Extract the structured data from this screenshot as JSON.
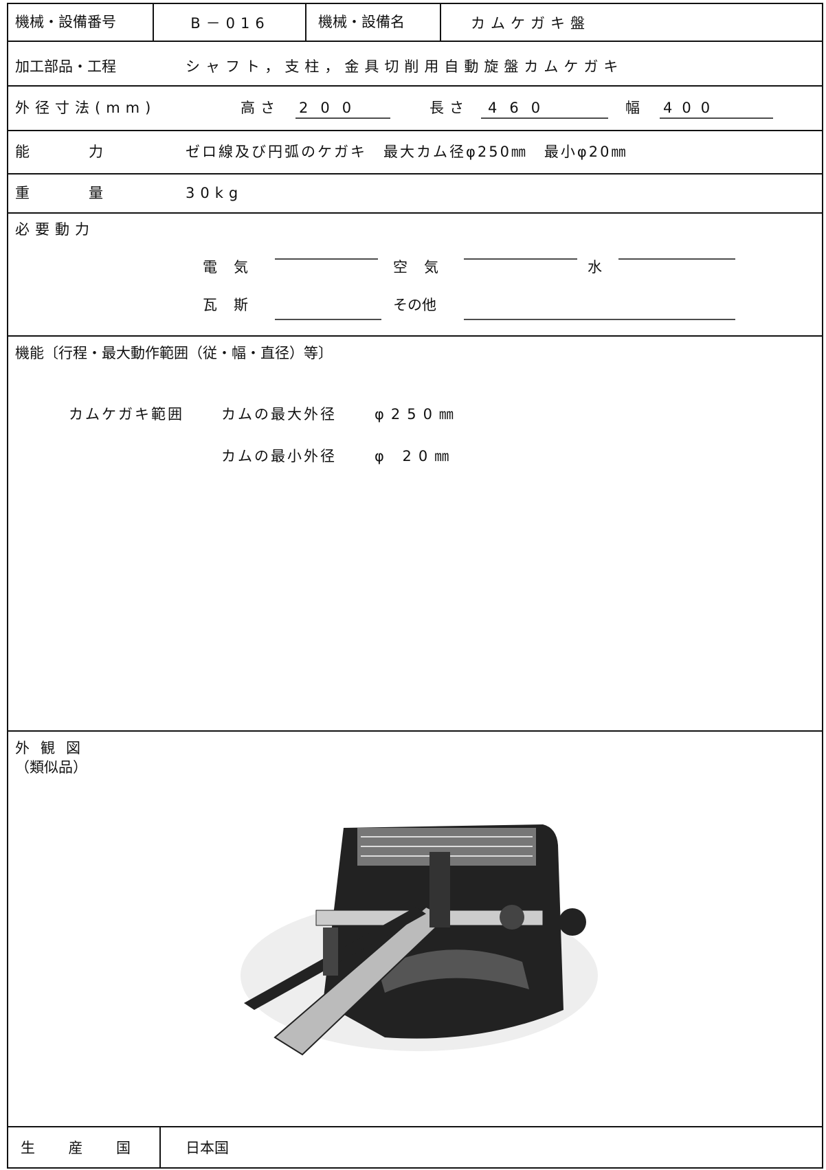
{
  "machine_no": {
    "label": "機械・設備番号",
    "value": "B－016"
  },
  "machine_name": {
    "label": "機械・設備名",
    "value": "カムケガキ盤"
  },
  "process": {
    "label": "加工部品・工程",
    "value": "シャフト，支柱，金具切削用自動旋盤カムケガキ"
  },
  "dimensions": {
    "label": "外径寸法(mm)",
    "height_label": "高さ",
    "height": 200,
    "length_label": "長さ",
    "length": 460,
    "width_label": "幅",
    "width": 400
  },
  "capacity": {
    "label": "能力",
    "value": "ゼロ線及び円弧のケガキ　最大カム径φ250㎜　最小φ20㎜"
  },
  "weight": {
    "label": "重量",
    "value": "30kg"
  },
  "power": {
    "label": "必要動力",
    "electricity": "電気",
    "air": "空気",
    "water": "水",
    "gas": "瓦斯",
    "other": "その他"
  },
  "function": {
    "label": "機能〔行程・最大動作範囲（従・幅・直径）等〕",
    "range_label": "カムケガキ範囲",
    "max_label": "カムの最大外径",
    "max_value": "φ250㎜",
    "min_label": "カムの最小外径",
    "min_value": "φ 20㎜"
  },
  "appearance": {
    "label": "外観図",
    "sub": "（類似品）"
  },
  "origin": {
    "label": "生産国",
    "value": "日本国"
  }
}
